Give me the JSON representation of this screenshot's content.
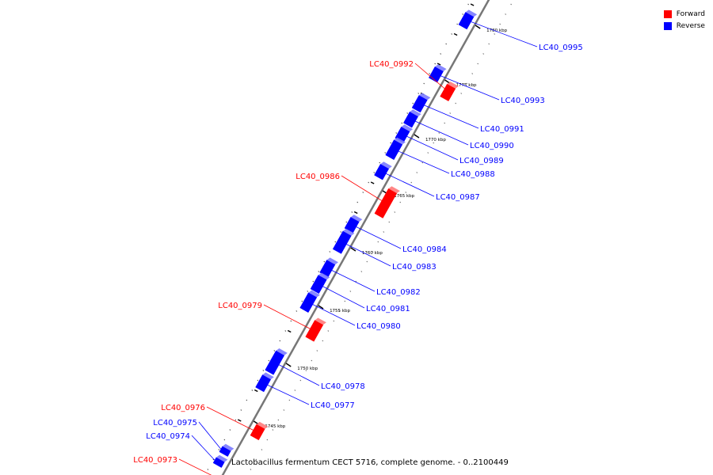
{
  "legend": {
    "forward_label": "Forward",
    "reverse_label": "Reverse",
    "forward_color": "#ff0000",
    "reverse_color": "#0000ff"
  },
  "caption": "Lactobacillus fermentum CECT 5716, complete genome. - 0..2100449",
  "colors": {
    "backbone": "#777777",
    "tick": "#000000",
    "forward": "#ff0000",
    "reverse": "#0000ff"
  },
  "chart_data": {
    "type": "genome_map",
    "unit": "kbp",
    "ticks": [
      "1745 kbp",
      "1750 kbp",
      "1755 kbp",
      "1760 kbp",
      "1765 kbp",
      "1770 kbp",
      "1775 kbp",
      "1780 kbp"
    ],
    "genes": [
      {
        "label": "LC40_0995",
        "strand": "reverse"
      },
      {
        "label": "LC40_0993",
        "strand": "reverse"
      },
      {
        "label": "LC40_0992",
        "strand": "forward"
      },
      {
        "label": "LC40_0991",
        "strand": "reverse"
      },
      {
        "label": "LC40_0990",
        "strand": "reverse"
      },
      {
        "label": "LC40_0989",
        "strand": "reverse"
      },
      {
        "label": "LC40_0988",
        "strand": "reverse"
      },
      {
        "label": "LC40_0987",
        "strand": "reverse"
      },
      {
        "label": "LC40_0986",
        "strand": "forward"
      },
      {
        "label": "LC40_0984",
        "strand": "reverse"
      },
      {
        "label": "LC40_0983",
        "strand": "reverse"
      },
      {
        "label": "LC40_0982",
        "strand": "reverse"
      },
      {
        "label": "LC40_0981",
        "strand": "reverse"
      },
      {
        "label": "LC40_0980",
        "strand": "reverse"
      },
      {
        "label": "LC40_0979",
        "strand": "forward"
      },
      {
        "label": "LC40_0978",
        "strand": "reverse"
      },
      {
        "label": "LC40_0977",
        "strand": "reverse"
      },
      {
        "label": "LC40_0976",
        "strand": "forward"
      },
      {
        "label": "LC40_0975",
        "strand": "reverse"
      },
      {
        "label": "LC40_0974",
        "strand": "reverse"
      },
      {
        "label": "LC40_0973",
        "strand": "forward"
      }
    ]
  }
}
